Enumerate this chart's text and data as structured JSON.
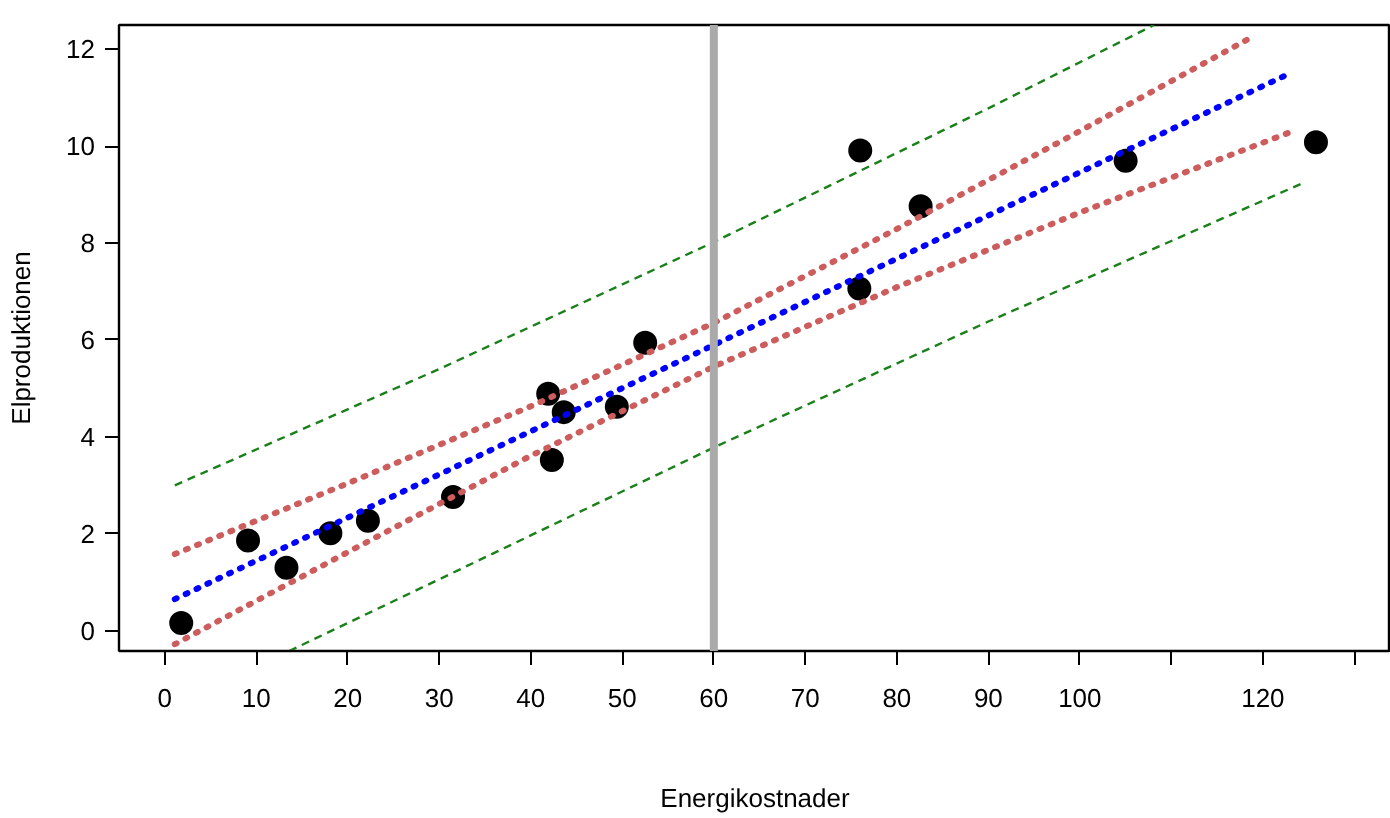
{
  "chart_data": {
    "type": "scatter",
    "xlabel": "Energikostnader",
    "ylabel": "Elproduktionen",
    "xlim": [
      -5,
      134
    ],
    "ylim": [
      -0.42,
      12.5
    ],
    "xticks": [
      0,
      10,
      20,
      30,
      40,
      50,
      60,
      70,
      80,
      90,
      100,
      {
        "value": 110,
        "label": null
      },
      120,
      {
        "value": 130,
        "label": null
      }
    ],
    "yticks": [
      0,
      2,
      4,
      6,
      8,
      10,
      12
    ],
    "grid": false,
    "ref_lines": [
      {
        "axis": "x",
        "value": 60,
        "color": "#aaaaaa",
        "line_style": "solid"
      }
    ],
    "series": [
      {
        "color": "#000000",
        "marker": "circle",
        "x": [
          1.8,
          9.1,
          13.3,
          18.1,
          22.2,
          31.5,
          41.9,
          43.6,
          42.3,
          49.4,
          52.5,
          76.0,
          82.6,
          75.9,
          105.0,
          125.8
        ],
        "values": [
          0.16,
          1.86,
          1.3,
          2.01,
          2.27,
          2.76,
          4.89,
          4.51,
          3.52,
          4.62,
          5.94,
          9.91,
          8.76,
          7.06,
          9.7,
          10.08
        ]
      },
      {
        "type": "line",
        "color": "#0000ff",
        "marker": "none",
        "line_style": "dotted",
        "x": [
          1.1,
          122.7
        ],
        "values": [
          0.65,
          11.48
        ]
      },
      {
        "type": "line",
        "color": "#cd5c5c",
        "marker": "none",
        "line_style": "dotted",
        "x": [
          1.1,
          20,
          40,
          60,
          80,
          100,
          119
        ],
        "values": [
          1.58,
          3.04,
          4.63,
          6.35,
          8.29,
          10.31,
          12.27
        ]
      },
      {
        "type": "line",
        "color": "#cd5c5c",
        "marker": "none",
        "line_style": "dotted",
        "x": [
          1.1,
          20,
          40,
          60,
          80,
          100,
          123.3
        ],
        "values": [
          -0.28,
          1.62,
          3.61,
          5.45,
          7.09,
          8.63,
          10.31
        ]
      },
      {
        "type": "line",
        "color": "#1a801a",
        "marker": "none",
        "line_style": "dashed",
        "x": [
          1.1,
          30,
          60,
          90,
          108.1
        ],
        "values": [
          3.0,
          5.4,
          8.02,
          10.78,
          12.5
        ]
      },
      {
        "type": "line",
        "color": "#1a801a",
        "marker": "none",
        "line_style": "dashed",
        "x": [
          13.6,
          30,
          60,
          90,
          124.4
        ],
        "values": [
          -0.42,
          1.06,
          3.78,
          6.38,
          9.24
        ]
      }
    ]
  }
}
